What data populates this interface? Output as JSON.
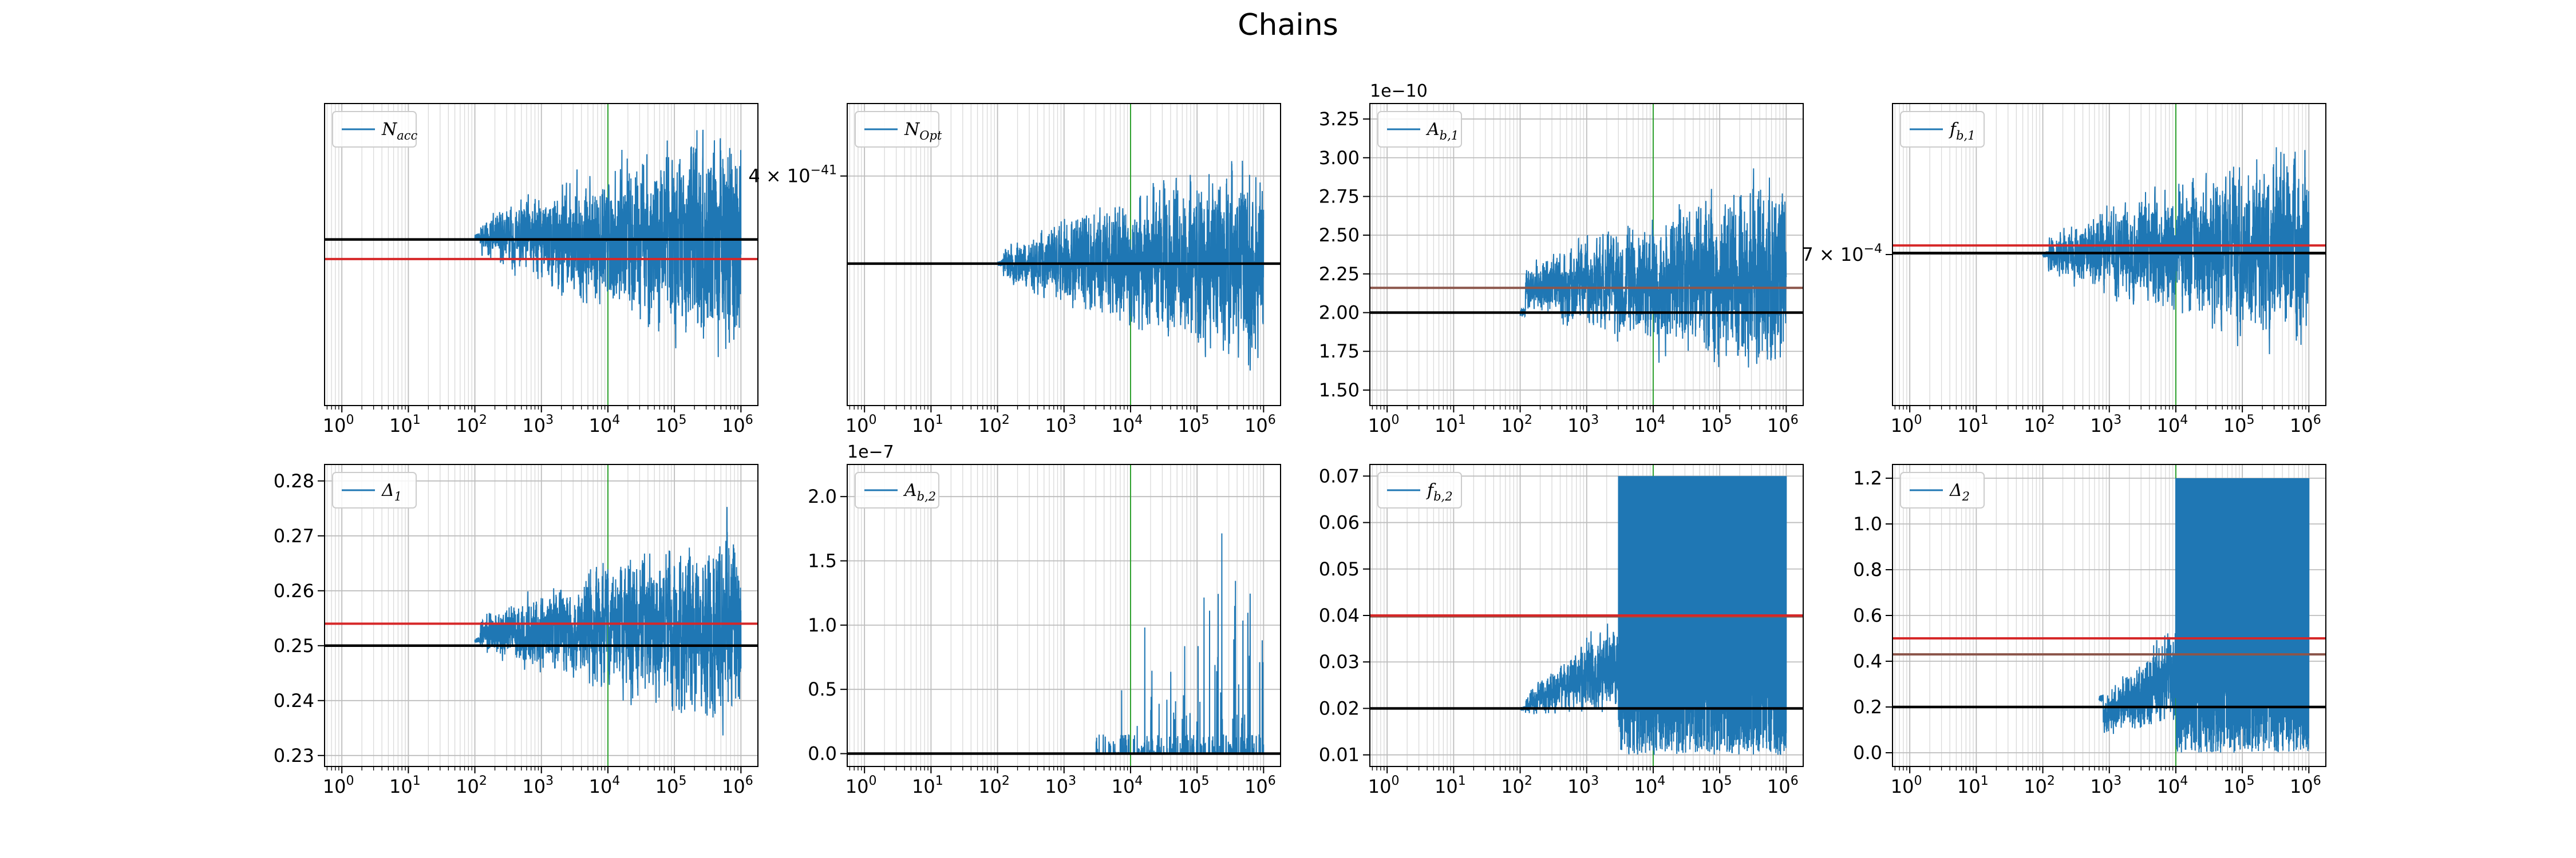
{
  "figure": {
    "title": "Chains"
  },
  "colors": {
    "chain": "#1f77b4",
    "truth": "#000000",
    "estimate": "#d62728",
    "estimate_alt": "#8c564b",
    "burnin": "#2ca02c",
    "grid": "#d9d9d9"
  },
  "chart_data": [
    {
      "type": "line",
      "legend": "$N_{acc}$",
      "legend_main": "N",
      "legend_sub": "acc",
      "xscale": "log",
      "xlim": [
        0.55,
        1800000
      ],
      "xticks": [
        {
          "v": 1,
          "label": "10",
          "exp": "0"
        },
        {
          "v": 10,
          "label": "10",
          "exp": "1"
        },
        {
          "v": 100,
          "label": "10",
          "exp": "2"
        },
        {
          "v": 1000,
          "label": "10",
          "exp": "3"
        },
        {
          "v": 10000,
          "label": "10",
          "exp": "4"
        },
        {
          "v": 100000,
          "label": "10",
          "exp": "5"
        },
        {
          "v": 1000000,
          "label": "10",
          "exp": "6"
        }
      ],
      "ylim": [
        0,
        1
      ],
      "yticks": [],
      "offset_text": "",
      "burnin_x": 10000,
      "chain": {
        "start": 100,
        "end": 1000000,
        "start_val": 0.56,
        "center_start": 0.56,
        "center_end": 0.53,
        "amp_start": 0.05,
        "amp_end": 0.55,
        "seed": 11,
        "spiky": false,
        "step_start": 0
      },
      "hlines": [
        {
          "y": 0.55,
          "role": "truth"
        },
        {
          "y": 0.485,
          "role": "estimate"
        }
      ]
    },
    {
      "type": "line",
      "legend": "$N_{Opt}$",
      "legend_main": "N",
      "legend_sub": "Opt",
      "xscale": "log",
      "xlim": [
        0.55,
        1800000
      ],
      "xticks": [
        {
          "v": 1,
          "label": "10",
          "exp": "0"
        },
        {
          "v": 10,
          "label": "10",
          "exp": "1"
        },
        {
          "v": 100,
          "label": "10",
          "exp": "2"
        },
        {
          "v": 1000,
          "label": "10",
          "exp": "3"
        },
        {
          "v": 10000,
          "label": "10",
          "exp": "4"
        },
        {
          "v": 100000,
          "label": "10",
          "exp": "5"
        },
        {
          "v": 1000000,
          "label": "10",
          "exp": "6"
        }
      ],
      "ylim": [
        0,
        1
      ],
      "yticks": [
        {
          "v": 0.76,
          "label": "4 × 10",
          "exp": "−41"
        }
      ],
      "offset_text": "",
      "burnin_x": 10000,
      "chain": {
        "start": 100,
        "end": 1000000,
        "start_val": 0.47,
        "center_start": 0.47,
        "center_end": 0.48,
        "amp_start": 0.05,
        "amp_end": 0.5,
        "seed": 23,
        "spiky": false,
        "step_start": 0
      },
      "hlines": [
        {
          "y": 0.47,
          "role": "truth"
        }
      ]
    },
    {
      "type": "line",
      "legend": "$A_{b,1}$",
      "legend_main": "A",
      "legend_sub": "b,1",
      "xscale": "log",
      "xlim": [
        0.55,
        1800000
      ],
      "xticks": [
        {
          "v": 1,
          "label": "10",
          "exp": "0"
        },
        {
          "v": 10,
          "label": "10",
          "exp": "1"
        },
        {
          "v": 100,
          "label": "10",
          "exp": "2"
        },
        {
          "v": 1000,
          "label": "10",
          "exp": "3"
        },
        {
          "v": 10000,
          "label": "10",
          "exp": "4"
        },
        {
          "v": 100000,
          "label": "10",
          "exp": "5"
        },
        {
          "v": 1000000,
          "label": "10",
          "exp": "6"
        }
      ],
      "ylim": [
        1.4,
        3.35
      ],
      "yticks": [
        {
          "v": 1.5,
          "label": "1.50"
        },
        {
          "v": 1.75,
          "label": "1.75"
        },
        {
          "v": 2.0,
          "label": "2.00"
        },
        {
          "v": 2.25,
          "label": "2.25"
        },
        {
          "v": 2.5,
          "label": "2.50"
        },
        {
          "v": 2.75,
          "label": "2.75"
        },
        {
          "v": 3.0,
          "label": "3.00"
        },
        {
          "v": 3.25,
          "label": "3.25"
        }
      ],
      "offset_text": "1e−10",
      "burnin_x": 10000,
      "chain": {
        "start": 100,
        "end": 1000000,
        "start_val": 2.0,
        "center_start": 2.15,
        "center_end": 2.25,
        "amp_start": 0.15,
        "amp_end": 0.95,
        "seed": 37,
        "spiky": false,
        "step_start": 0
      },
      "hlines": [
        {
          "y": 2.0,
          "role": "truth"
        },
        {
          "y": 2.16,
          "role": "estimate_alt"
        }
      ]
    },
    {
      "type": "line",
      "legend": "$f_{b,1}$",
      "legend_main": "f",
      "legend_sub": "b,1",
      "xscale": "log",
      "xlim": [
        0.55,
        1800000
      ],
      "xticks": [
        {
          "v": 1,
          "label": "10",
          "exp": "0"
        },
        {
          "v": 10,
          "label": "10",
          "exp": "1"
        },
        {
          "v": 100,
          "label": "10",
          "exp": "2"
        },
        {
          "v": 1000,
          "label": "10",
          "exp": "3"
        },
        {
          "v": 10000,
          "label": "10",
          "exp": "4"
        },
        {
          "v": 100000,
          "label": "10",
          "exp": "5"
        },
        {
          "v": 1000000,
          "label": "10",
          "exp": "6"
        }
      ],
      "ylim": [
        0,
        1
      ],
      "yticks": [
        {
          "v": 0.5,
          "label": "7 × 10",
          "exp": "−4"
        }
      ],
      "offset_text": "",
      "burnin_x": 10000,
      "chain": {
        "start": 100,
        "end": 1000000,
        "start_val": 0.5,
        "center_start": 0.5,
        "center_end": 0.52,
        "amp_start": 0.06,
        "amp_end": 0.48,
        "seed": 41,
        "spiky": false,
        "step_start": 0
      },
      "hlines": [
        {
          "y": 0.53,
          "role": "estimate"
        },
        {
          "y": 0.505,
          "role": "truth"
        }
      ]
    },
    {
      "type": "line",
      "legend": "$\\Delta_{1}$",
      "legend_main": "Δ",
      "legend_sub": "1",
      "xscale": "log",
      "xlim": [
        0.55,
        1800000
      ],
      "xticks": [
        {
          "v": 1,
          "label": "10",
          "exp": "0"
        },
        {
          "v": 10,
          "label": "10",
          "exp": "1"
        },
        {
          "v": 100,
          "label": "10",
          "exp": "2"
        },
        {
          "v": 1000,
          "label": "10",
          "exp": "3"
        },
        {
          "v": 10000,
          "label": "10",
          "exp": "4"
        },
        {
          "v": 100000,
          "label": "10",
          "exp": "5"
        },
        {
          "v": 1000000,
          "label": "10",
          "exp": "6"
        }
      ],
      "ylim": [
        0.228,
        0.283
      ],
      "yticks": [
        {
          "v": 0.23,
          "label": "0.23"
        },
        {
          "v": 0.24,
          "label": "0.24"
        },
        {
          "v": 0.25,
          "label": "0.25"
        },
        {
          "v": 0.26,
          "label": "0.26"
        },
        {
          "v": 0.27,
          "label": "0.27"
        },
        {
          "v": 0.28,
          "label": "0.28"
        }
      ],
      "offset_text": "",
      "burnin_x": 10000,
      "chain": {
        "start": 100,
        "end": 1000000,
        "start_val": 0.251,
        "center_start": 0.252,
        "center_end": 0.254,
        "amp_start": 0.003,
        "amp_end": 0.026,
        "seed": 53,
        "spiky": false,
        "step_start": 0
      },
      "hlines": [
        {
          "y": 0.254,
          "role": "estimate"
        },
        {
          "y": 0.25,
          "role": "truth"
        }
      ]
    },
    {
      "type": "line",
      "legend": "$A_{b,2}$",
      "legend_main": "A",
      "legend_sub": "b,2",
      "xscale": "log",
      "xlim": [
        0.55,
        1800000
      ],
      "xticks": [
        {
          "v": 1,
          "label": "10",
          "exp": "0"
        },
        {
          "v": 10,
          "label": "10",
          "exp": "1"
        },
        {
          "v": 100,
          "label": "10",
          "exp": "2"
        },
        {
          "v": 1000,
          "label": "10",
          "exp": "3"
        },
        {
          "v": 10000,
          "label": "10",
          "exp": "4"
        },
        {
          "v": 100000,
          "label": "10",
          "exp": "5"
        },
        {
          "v": 1000000,
          "label": "10",
          "exp": "6"
        }
      ],
      "ylim": [
        -0.1,
        2.25
      ],
      "yticks": [
        {
          "v": 0.0,
          "label": "0.0"
        },
        {
          "v": 0.5,
          "label": "0.5"
        },
        {
          "v": 1.0,
          "label": "1.0"
        },
        {
          "v": 1.5,
          "label": "1.5"
        },
        {
          "v": 2.0,
          "label": "2.0"
        }
      ],
      "offset_text": "1e−7",
      "burnin_x": 10000,
      "chain": {
        "start": 100,
        "end": 1000000,
        "start_val": 0.0,
        "center_start": 0.0,
        "center_end": 0.0,
        "amp_start": 0.0,
        "amp_end": 2.15,
        "seed": 67,
        "spiky": true,
        "step_start": 0
      },
      "hlines": [
        {
          "y": 0.0,
          "role": "truth"
        }
      ]
    },
    {
      "type": "line",
      "legend": "$f_{b,2}$",
      "legend_main": "f",
      "legend_sub": "b,2",
      "xscale": "log",
      "xlim": [
        0.55,
        1800000
      ],
      "xticks": [
        {
          "v": 1,
          "label": "10",
          "exp": "0"
        },
        {
          "v": 10,
          "label": "10",
          "exp": "1"
        },
        {
          "v": 100,
          "label": "10",
          "exp": "2"
        },
        {
          "v": 1000,
          "label": "10",
          "exp": "3"
        },
        {
          "v": 10000,
          "label": "10",
          "exp": "4"
        },
        {
          "v": 100000,
          "label": "10",
          "exp": "5"
        },
        {
          "v": 1000000,
          "label": "10",
          "exp": "6"
        }
      ],
      "ylim": [
        0.0075,
        0.0725
      ],
      "yticks": [
        {
          "v": 0.01,
          "label": "0.01"
        },
        {
          "v": 0.02,
          "label": "0.02"
        },
        {
          "v": 0.03,
          "label": "0.03"
        },
        {
          "v": 0.04,
          "label": "0.04"
        },
        {
          "v": 0.05,
          "label": "0.05"
        },
        {
          "v": 0.06,
          "label": "0.06"
        },
        {
          "v": 0.07,
          "label": "0.07"
        }
      ],
      "offset_text": "",
      "burnin_x": 10000,
      "chain": {
        "start": 100,
        "end": 1000000,
        "start_val": 0.02,
        "center_start": 0.02,
        "center_end": 0.04,
        "amp_start": 0.002,
        "amp_end": 0.03,
        "seed": 79,
        "spiky": false,
        "step_start": 3000,
        "clip": [
          0.01,
          0.07
        ]
      },
      "hlines": [
        {
          "y": 0.02,
          "role": "truth"
        },
        {
          "y": 0.0398,
          "role": "estimate_alt"
        },
        {
          "y": 0.04,
          "role": "estimate"
        }
      ]
    },
    {
      "type": "line",
      "legend": "$\\Delta_{2}$",
      "legend_main": "Δ",
      "legend_sub": "2",
      "xscale": "log",
      "xlim": [
        0.55,
        1800000
      ],
      "xticks": [
        {
          "v": 1,
          "label": "10",
          "exp": "0"
        },
        {
          "v": 10,
          "label": "10",
          "exp": "1"
        },
        {
          "v": 100,
          "label": "10",
          "exp": "2"
        },
        {
          "v": 1000,
          "label": "10",
          "exp": "3"
        },
        {
          "v": 10000,
          "label": "10",
          "exp": "4"
        },
        {
          "v": 100000,
          "label": "10",
          "exp": "5"
        },
        {
          "v": 1000000,
          "label": "10",
          "exp": "6"
        }
      ],
      "ylim": [
        -0.06,
        1.26
      ],
      "yticks": [
        {
          "v": 0.0,
          "label": "0.0"
        },
        {
          "v": 0.2,
          "label": "0.2"
        },
        {
          "v": 0.4,
          "label": "0.4"
        },
        {
          "v": 0.6,
          "label": "0.6"
        },
        {
          "v": 0.8,
          "label": "0.8"
        },
        {
          "v": 1.0,
          "label": "1.0"
        },
        {
          "v": 1.2,
          "label": "1.2"
        }
      ],
      "offset_text": "",
      "burnin_x": 10000,
      "chain": {
        "start": 700,
        "end": 1000000,
        "start_val": 0.24,
        "center_start": 0.12,
        "center_end": 0.6,
        "amp_start": 0.08,
        "amp_end": 0.6,
        "seed": 97,
        "spiky": false,
        "step_start": 10000,
        "clip": [
          0.0,
          1.2
        ]
      },
      "hlines": [
        {
          "y": 0.2,
          "role": "truth"
        },
        {
          "y": 0.43,
          "role": "estimate_alt"
        },
        {
          "y": 0.5,
          "role": "estimate"
        }
      ]
    }
  ]
}
